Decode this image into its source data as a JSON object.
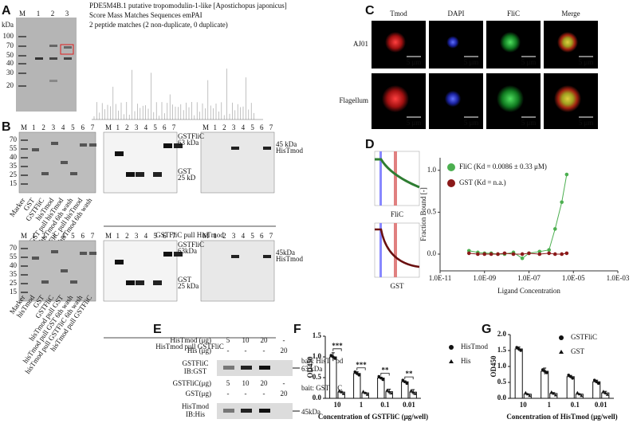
{
  "panel_labels": [
    "A",
    "B",
    "C",
    "D",
    "E",
    "F",
    "G"
  ],
  "a": {
    "lanes": [
      "M",
      "1",
      "2",
      "3"
    ],
    "unit": "kDa",
    "ladder": [
      "100",
      "70",
      "50",
      "40",
      "30",
      "20"
    ],
    "ms_lines": [
      "PDE5M4B.1   putative tropomodulin-1-like [Apostichopus japonicus]",
      "Score   Mass   Matches   Sequences   emPAI",
      "2 peptide matches (2 non-duplicate, 0 duplicate)"
    ]
  },
  "b": {
    "lanes": [
      "M",
      "1",
      "2",
      "3",
      "4",
      "5",
      "6",
      "7"
    ],
    "ladder": [
      "70",
      "55",
      "40",
      "35",
      "25",
      "15"
    ],
    "top": {
      "lane_labels": [
        "Marker",
        "GST",
        "GSTFliC",
        "hisTmod",
        "GST pull hisTmod",
        "GST pull hisTmod 6th wash",
        "GSTFliC pull hisTmod",
        "GSTFliC pull hisTmod 6th wash"
      ],
      "gstflic": "GSTFliC",
      "kda63": "63 kDa",
      "gst": "GST",
      "kda25": "25 kD",
      "kda45": "45 kDa",
      "histmod": "HisTmod",
      "caption": "GSTFliC pull HisTmod"
    },
    "bottom": {
      "lane_labels": [
        "Marker",
        "hisTmod",
        "GST",
        "GSTFliC",
        "hisTmod pull GST",
        "hisTmod pull GST 6th wash",
        "hisTmod pull GSTFliC 6th wash",
        "hisTmod pull GSTFliC"
      ],
      "gstflic": "GSTFliC",
      "kda63": "63kDa",
      "gst": "GST",
      "kda25": "25 kDa",
      "kda45": "45kDa",
      "histmod": "HisTmod",
      "caption": "HisTmod pull GSTFliC"
    }
  },
  "c": {
    "columns": [
      "Tmod",
      "DAPI",
      "FliC",
      "Merge"
    ],
    "rows": [
      "AJ01",
      "Flagellum"
    ],
    "scale": "5 μm"
  },
  "d": {
    "left_labels": [
      "FliC",
      "GST"
    ]
  },
  "e": {
    "blot1": {
      "row1": "HisTmod (μg)",
      "row1_values": [
        "5",
        "10",
        "20",
        "-"
      ],
      "row2": "His (μg)",
      "row2_values": [
        "-",
        "-",
        "-",
        "20"
      ],
      "target": "GSTFliC",
      "ib": "IB:GST",
      "bait": "bait: HisTmod",
      "size": "63 kDa"
    },
    "blot2": {
      "row1": "GSTFliC(μg)",
      "row1_values": [
        "5",
        "10",
        "20",
        "-"
      ],
      "row2": "GST(μg)",
      "row2_values": [
        "-",
        "-",
        "-",
        "20"
      ],
      "target": "HisTmod",
      "ib": "IB:His",
      "bait": "bait: GSTFliC",
      "size": "45kDa"
    }
  },
  "chart_data": [
    {
      "type": "scatter",
      "xscale": "log",
      "x": [
        2e-10,
        5e-10,
        1e-09,
        2e-09,
        4e-09,
        8e-09,
        2e-08,
        5e-08,
        1e-07,
        3e-07,
        8e-07,
        1.5e-06,
        3e-06,
        5e-06
      ],
      "series": [
        {
          "name": "FliC (Kd = 0.0086 ± 0.33 μM)",
          "color": "#4caf50",
          "values": [
            0.04,
            0.02,
            0.01,
            0.01,
            0.0,
            0.0,
            0.02,
            -0.05,
            0.01,
            0.03,
            0.05,
            0.3,
            0.62,
            0.95
          ]
        },
        {
          "name": "GST (Kd = n.a.)",
          "color": "#8b1a1a",
          "values": [
            0.01,
            0.0,
            0.0,
            0.0,
            0.0,
            0.01,
            0.0,
            0.0,
            0.01,
            0.0,
            0.01,
            0.0,
            0.0,
            0.01
          ]
        }
      ],
      "xlim": [
        1e-11,
        0.001
      ],
      "xticks": [
        {
          "value": 1e-11,
          "label": "1.0E-11"
        },
        {
          "value": 1e-09,
          "label": "1.0E-09"
        },
        {
          "value": 1e-07,
          "label": "1.0E-07"
        },
        {
          "value": 1e-05,
          "label": "1.0E-05"
        },
        {
          "value": 0.001,
          "label": "1.0E-03"
        }
      ],
      "ylim": [
        -0.2,
        1.15
      ],
      "yticks": [
        {
          "value": 0,
          "label": "0.0"
        },
        0.5,
        {
          "value": 1,
          "label": "1.0"
        }
      ],
      "x_label": "Ligand Concentration",
      "y_label": "Fraction Bound [-]",
      "legend": "upper left"
    },
    {
      "type": "bar",
      "categories": [
        "10",
        "1",
        "0.1",
        "0.01"
      ],
      "series": [
        {
          "name": "HisTmod",
          "marker": "circle",
          "values": [
            1.0,
            0.6,
            0.49,
            0.4
          ],
          "errors": [
            0.1,
            0.04,
            0.02,
            0.02
          ]
        },
        {
          "name": "His",
          "marker": "triangle",
          "values": [
            0.15,
            0.13,
            0.16,
            0.15
          ],
          "errors": [
            0.02,
            0.01,
            0.06,
            0.06
          ]
        }
      ],
      "annotations": [
        "***",
        "***",
        "**",
        "**"
      ],
      "ylim": [
        0,
        1.5
      ],
      "yticks": [
        {
          "value": 0,
          "label": "0.0"
        },
        0.5,
        {
          "value": 1,
          "label": "1.0"
        },
        1.5
      ],
      "x_label": "Concentration of GSTFliC (μg/well)",
      "y_label": "OD450",
      "legend": "upper right"
    },
    {
      "type": "bar",
      "categories": [
        "10",
        "1",
        "0.1",
        "0.01"
      ],
      "series": [
        {
          "name": "GSTFliC",
          "marker": "circle",
          "values": [
            1.55,
            0.85,
            0.68,
            0.52
          ],
          "errors": [
            0.06,
            0.1,
            0.04,
            0.05
          ]
        },
        {
          "name": "GST",
          "marker": "triangle",
          "values": [
            0.13,
            0.15,
            0.13,
            0.17
          ],
          "errors": [
            0.01,
            0.03,
            0.01,
            0.05
          ]
        }
      ],
      "ylim": [
        0,
        2
      ],
      "yticks": [
        {
          "value": 0,
          "label": "0.0"
        },
        0.5,
        {
          "value": 1,
          "label": "1.0"
        },
        1.5,
        {
          "value": 2,
          "label": "2.0"
        }
      ],
      "x_label": "Concentration of HisTmod (μg/well)",
      "y_label": "OD450",
      "legend": "upper right"
    }
  ]
}
